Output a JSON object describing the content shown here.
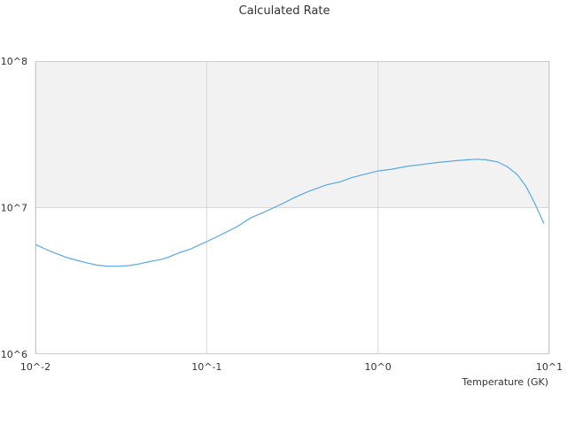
{
  "chart_data": {
    "type": "line",
    "title": "Calculated Rate",
    "xlabel": "Temperature (GK)",
    "ylabel": "",
    "x_scale": "log",
    "y_scale": "log",
    "xlim": [
      0.01,
      10
    ],
    "ylim": [
      1000000,
      100000000
    ],
    "grid": true,
    "legend": "none",
    "x_tick_labels": [
      "10^-2",
      "10^-1",
      "10^0",
      "10^1"
    ],
    "y_tick_labels": [
      "10^6",
      "10^7",
      "10^8"
    ],
    "shaded_band": [
      10000000,
      100000000
    ],
    "colors": {
      "line": "#5aa8e6",
      "band": "#f2f2f2",
      "grid": "#d9d9d9",
      "axis": "#cccccc"
    },
    "series": [
      {
        "x": [
          0.01,
          0.0115,
          0.013,
          0.015,
          0.017,
          0.02,
          0.023,
          0.026,
          0.03,
          0.035,
          0.04,
          0.045,
          0.05,
          0.055,
          0.06,
          0.07,
          0.08,
          0.09,
          0.1,
          0.12,
          0.15,
          0.18,
          0.22,
          0.27,
          0.33,
          0.4,
          0.5,
          0.6,
          0.7,
          0.85,
          1.0,
          1.2,
          1.5,
          1.8,
          2.2,
          2.7,
          3.3,
          3.8,
          4.3,
          5.0,
          5.7,
          6.5,
          7.3,
          8.2,
          9.3
        ],
        "y": [
          5600000,
          5200000,
          4900000,
          4600000,
          4400000,
          4200000,
          4050000,
          3990000,
          3980000,
          4020000,
          4120000,
          4250000,
          4350000,
          4450000,
          4600000,
          4950000,
          5200000,
          5550000,
          5850000,
          6500000,
          7400000,
          8500000,
          9400000,
          10500000,
          11800000,
          13000000,
          14300000,
          15000000,
          16000000,
          17000000,
          17800000,
          18300000,
          19200000,
          19700000,
          20300000,
          20800000,
          21200000,
          21400000,
          21200000,
          20500000,
          19000000,
          16800000,
          14000000,
          10800000,
          7800000
        ]
      }
    ]
  }
}
